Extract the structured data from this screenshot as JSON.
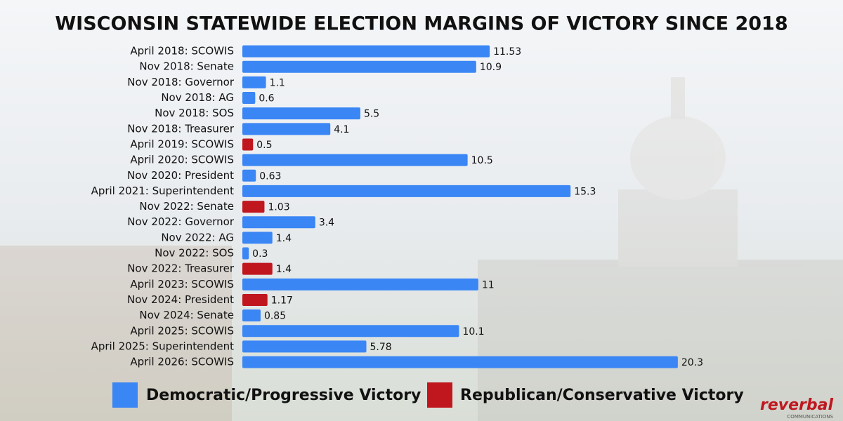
{
  "chart_data": {
    "type": "bar",
    "orientation": "horizontal",
    "title": "WISCONSIN STATEWIDE ELECTION MARGINS OF VICTORY SINCE 2018",
    "categories": [
      "April 2018: SCOWIS",
      "Nov 2018: Senate",
      "Nov 2018: Governor",
      "Nov 2018: AG",
      "Nov 2018: SOS",
      "Nov 2018: Treasurer",
      "April 2019: SCOWIS",
      "April 2020: SCOWIS",
      "Nov 2020: President",
      "April 2021: Superintendent",
      "Nov 2022: Senate",
      "Nov 2022: Governor",
      "Nov 2022: AG",
      "Nov 2022: SOS",
      "Nov 2022: Treasurer",
      "April 2023: SCOWIS",
      "Nov 2024: President",
      "Nov 2024: Senate",
      "April 2025: SCOWIS",
      "April 2025: Superintendent",
      "April 2026: SCOWIS"
    ],
    "series": [
      {
        "name": "Democratic/Progressive Victory",
        "color": "#3a86f5",
        "values": [
          11.53,
          10.9,
          1.1,
          0.6,
          5.5,
          4.1,
          null,
          10.5,
          0.63,
          15.3,
          null,
          3.4,
          1.4,
          0.3,
          null,
          11,
          null,
          0.85,
          10.1,
          5.78,
          20.3
        ]
      },
      {
        "name": "Republican/Conservative Victory",
        "color": "#c0171f",
        "values": [
          null,
          null,
          null,
          null,
          null,
          null,
          0.5,
          null,
          null,
          null,
          1.03,
          null,
          null,
          null,
          1.4,
          null,
          1.17,
          null,
          null,
          null,
          null
        ]
      }
    ],
    "xlim": [
      0,
      28
    ]
  },
  "logo": {
    "name": "reverbal",
    "subtitle": "COMMUNICATIONS"
  }
}
